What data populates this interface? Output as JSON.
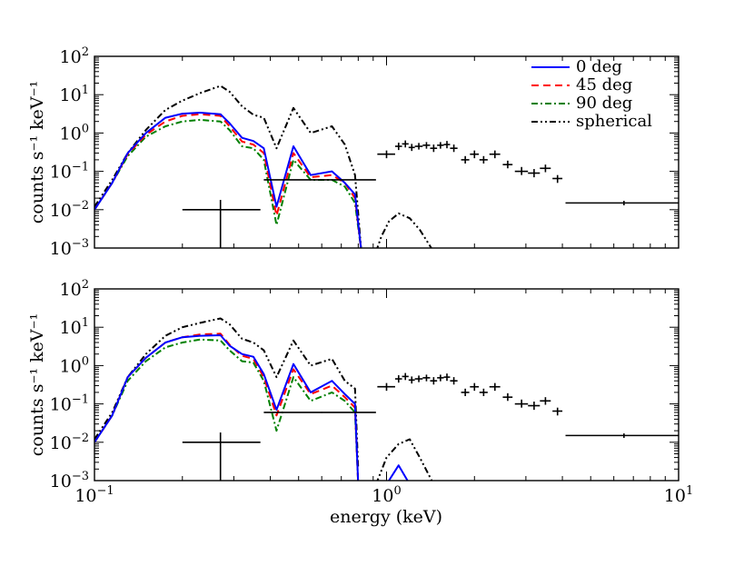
{
  "chart_data": [
    {
      "type": "line",
      "panel": "top",
      "title": "",
      "xlabel": "",
      "ylabel": "counts s⁻¹ keV⁻¹",
      "xscale": "log",
      "yscale": "log",
      "xlim": [
        0.1,
        10
      ],
      "ylim": [
        0.001,
        100
      ],
      "x_tick_labels": [],
      "y_tick_labels": [
        {
          "value": 100,
          "base": "10",
          "exp": "2"
        },
        {
          "value": 10,
          "base": "10",
          "exp": "1"
        },
        {
          "value": 1,
          "base": "10",
          "exp": "0"
        },
        {
          "value": 0.1,
          "base": "10",
          "exp": "−1"
        },
        {
          "value": 0.01,
          "base": "10",
          "exp": "−2"
        },
        {
          "value": 0.001,
          "base": "10",
          "exp": "−3"
        }
      ],
      "legend": {
        "position": "top-right",
        "entries": [
          {
            "label": "0 deg",
            "color": "#0000ff",
            "style": "solid"
          },
          {
            "label": "45 deg",
            "color": "#ff0000",
            "style": "dashed"
          },
          {
            "label": "90 deg",
            "color": "#008000",
            "style": "dashdot"
          },
          {
            "label": "spherical",
            "color": "#000000",
            "style": "dashdotdot"
          }
        ]
      },
      "series": [
        {
          "name": "spherical",
          "color": "#000000",
          "style": "dashdotdot",
          "x": [
            0.1,
            0.115,
            0.13,
            0.15,
            0.175,
            0.2,
            0.23,
            0.27,
            0.29,
            0.32,
            0.35,
            0.38,
            0.42,
            0.48,
            0.55,
            0.65,
            0.72,
            0.78,
            0.82
          ],
          "y": [
            0.012,
            0.06,
            0.3,
            1.2,
            4.0,
            7.0,
            11.0,
            17.0,
            12.0,
            5.0,
            3.0,
            2.5,
            0.4,
            4.5,
            1.0,
            1.5,
            0.5,
            0.08,
            0.0008
          ]
        },
        {
          "name": "spherical-tail",
          "color": "#000000",
          "style": "dashdotdot",
          "x": [
            0.92,
            0.96,
            1.02,
            1.1,
            1.2,
            1.3,
            1.45
          ],
          "y": [
            0.0008,
            0.002,
            0.005,
            0.008,
            0.006,
            0.003,
            0.0008
          ]
        },
        {
          "name": "90 deg",
          "color": "#008000",
          "style": "dashdot",
          "x": [
            0.1,
            0.115,
            0.13,
            0.15,
            0.175,
            0.2,
            0.23,
            0.27,
            0.29,
            0.32,
            0.35,
            0.38,
            0.42,
            0.48,
            0.55,
            0.65,
            0.72,
            0.78,
            0.82
          ],
          "y": [
            0.01,
            0.05,
            0.25,
            0.8,
            1.5,
            2.0,
            2.2,
            2.0,
            1.2,
            0.45,
            0.4,
            0.2,
            0.004,
            0.2,
            0.06,
            0.06,
            0.04,
            0.015,
            0.0008
          ]
        },
        {
          "name": "45 deg",
          "color": "#ff0000",
          "style": "dashed",
          "x": [
            0.1,
            0.115,
            0.13,
            0.15,
            0.175,
            0.2,
            0.23,
            0.27,
            0.29,
            0.32,
            0.35,
            0.38,
            0.42,
            0.48,
            0.55,
            0.65,
            0.72,
            0.78,
            0.82
          ],
          "y": [
            0.01,
            0.05,
            0.28,
            0.9,
            2.0,
            2.8,
            3.1,
            2.8,
            1.5,
            0.6,
            0.5,
            0.3,
            0.007,
            0.3,
            0.07,
            0.08,
            0.05,
            0.02,
            0.0008
          ]
        },
        {
          "name": "0 deg",
          "color": "#0000ff",
          "style": "solid",
          "x": [
            0.1,
            0.115,
            0.13,
            0.15,
            0.175,
            0.2,
            0.23,
            0.27,
            0.29,
            0.32,
            0.35,
            0.38,
            0.42,
            0.48,
            0.55,
            0.65,
            0.72,
            0.78,
            0.82
          ],
          "y": [
            0.01,
            0.05,
            0.3,
            1.0,
            2.5,
            3.2,
            3.4,
            3.1,
            1.8,
            0.75,
            0.62,
            0.4,
            0.012,
            0.45,
            0.08,
            0.1,
            0.05,
            0.025,
            0.0008
          ]
        }
      ],
      "data_points": {
        "name": "observed",
        "color": "#000000",
        "points": [
          {
            "x": 0.27,
            "y": 0.01,
            "xlo": 0.2,
            "xhi": 0.37,
            "ylo": 0.0008,
            "yhi": 0.018
          },
          {
            "x": 0.6,
            "y": 0.06,
            "xlo": 0.38,
            "xhi": 0.92,
            "ylo": 0.058,
            "yhi": 0.062
          },
          {
            "x": 1.0,
            "y": 0.28,
            "xlo": 0.93,
            "xhi": 1.07,
            "ylo": 0.22,
            "yhi": 0.35
          },
          {
            "x": 1.1,
            "y": 0.45,
            "xlo": 1.07,
            "xhi": 1.13,
            "ylo": 0.36,
            "yhi": 0.56
          },
          {
            "x": 1.16,
            "y": 0.52,
            "xlo": 1.13,
            "xhi": 1.19,
            "ylo": 0.42,
            "yhi": 0.64
          },
          {
            "x": 1.22,
            "y": 0.42,
            "xlo": 1.19,
            "xhi": 1.25,
            "ylo": 0.34,
            "yhi": 0.52
          },
          {
            "x": 1.29,
            "y": 0.45,
            "xlo": 1.25,
            "xhi": 1.33,
            "ylo": 0.37,
            "yhi": 0.55
          },
          {
            "x": 1.37,
            "y": 0.48,
            "xlo": 1.33,
            "xhi": 1.41,
            "ylo": 0.39,
            "yhi": 0.58
          },
          {
            "x": 1.45,
            "y": 0.4,
            "xlo": 1.41,
            "xhi": 1.49,
            "ylo": 0.32,
            "yhi": 0.5
          },
          {
            "x": 1.53,
            "y": 0.48,
            "xlo": 1.49,
            "xhi": 1.57,
            "ylo": 0.39,
            "yhi": 0.58
          },
          {
            "x": 1.61,
            "y": 0.5,
            "xlo": 1.57,
            "xhi": 1.65,
            "ylo": 0.4,
            "yhi": 0.62
          },
          {
            "x": 1.7,
            "y": 0.4,
            "xlo": 1.65,
            "xhi": 1.75,
            "ylo": 0.32,
            "yhi": 0.5
          },
          {
            "x": 1.86,
            "y": 0.2,
            "xlo": 1.8,
            "xhi": 1.92,
            "ylo": 0.16,
            "yhi": 0.25
          },
          {
            "x": 2.0,
            "y": 0.28,
            "xlo": 1.93,
            "xhi": 2.07,
            "ylo": 0.22,
            "yhi": 0.35
          },
          {
            "x": 2.15,
            "y": 0.2,
            "xlo": 2.08,
            "xhi": 2.22,
            "ylo": 0.16,
            "yhi": 0.25
          },
          {
            "x": 2.35,
            "y": 0.28,
            "xlo": 2.25,
            "xhi": 2.45,
            "ylo": 0.22,
            "yhi": 0.35
          },
          {
            "x": 2.6,
            "y": 0.15,
            "xlo": 2.5,
            "xhi": 2.7,
            "ylo": 0.12,
            "yhi": 0.19
          },
          {
            "x": 2.9,
            "y": 0.1,
            "xlo": 2.75,
            "xhi": 3.05,
            "ylo": 0.08,
            "yhi": 0.13
          },
          {
            "x": 3.2,
            "y": 0.09,
            "xlo": 3.05,
            "xhi": 3.35,
            "ylo": 0.07,
            "yhi": 0.115
          },
          {
            "x": 3.5,
            "y": 0.12,
            "xlo": 3.35,
            "xhi": 3.65,
            "ylo": 0.095,
            "yhi": 0.15
          },
          {
            "x": 3.85,
            "y": 0.065,
            "xlo": 3.7,
            "xhi": 4.0,
            "ylo": 0.05,
            "yhi": 0.08
          },
          {
            "x": 6.5,
            "y": 0.015,
            "xlo": 4.1,
            "xhi": 10.0,
            "ylo": 0.013,
            "yhi": 0.017
          }
        ]
      }
    },
    {
      "type": "line",
      "panel": "bottom",
      "title": "",
      "xlabel": "energy (keV)",
      "ylabel": "counts s⁻¹ keV⁻¹",
      "xscale": "log",
      "yscale": "log",
      "xlim": [
        0.1,
        10
      ],
      "ylim": [
        0.001,
        100
      ],
      "x_tick_labels": [
        {
          "value": 0.1,
          "base": "10",
          "exp": "−1"
        },
        {
          "value": 1,
          "base": "10",
          "exp": "0"
        },
        {
          "value": 10,
          "base": "10",
          "exp": "1"
        }
      ],
      "y_tick_labels": [
        {
          "value": 100,
          "base": "10",
          "exp": "2"
        },
        {
          "value": 10,
          "base": "10",
          "exp": "1"
        },
        {
          "value": 1,
          "base": "10",
          "exp": "0"
        },
        {
          "value": 0.1,
          "base": "10",
          "exp": "−1"
        },
        {
          "value": 0.01,
          "base": "10",
          "exp": "−2"
        },
        {
          "value": 0.001,
          "base": "10",
          "exp": "−3"
        }
      ],
      "series": [
        {
          "name": "spherical",
          "color": "#000000",
          "style": "dashdotdot",
          "x": [
            0.1,
            0.115,
            0.13,
            0.15,
            0.175,
            0.2,
            0.23,
            0.27,
            0.29,
            0.32,
            0.35,
            0.38,
            0.42,
            0.48,
            0.55,
            0.65,
            0.72,
            0.78,
            0.8
          ],
          "y": [
            0.012,
            0.06,
            0.5,
            2.0,
            6.0,
            10.0,
            13.0,
            17.0,
            12.0,
            5.0,
            4.0,
            2.5,
            0.5,
            4.5,
            1.0,
            1.5,
            0.4,
            0.25,
            0.002
          ]
        },
        {
          "name": "spherical-tail",
          "color": "#000000",
          "style": "dashdotdot",
          "x": [
            0.92,
            1.0,
            1.1,
            1.2,
            1.3,
            1.45
          ],
          "y": [
            0.0008,
            0.004,
            0.009,
            0.012,
            0.004,
            0.0008
          ]
        },
        {
          "name": "90 deg",
          "color": "#008000",
          "style": "dashdot",
          "x": [
            0.1,
            0.115,
            0.13,
            0.15,
            0.175,
            0.2,
            0.23,
            0.27,
            0.29,
            0.32,
            0.35,
            0.38,
            0.42,
            0.48,
            0.55,
            0.65,
            0.72,
            0.78,
            0.8
          ],
          "y": [
            0.01,
            0.05,
            0.4,
            1.3,
            3.0,
            4.0,
            4.8,
            4.5,
            2.5,
            1.3,
            1.2,
            0.4,
            0.02,
            0.5,
            0.12,
            0.2,
            0.12,
            0.06,
            0.0008
          ]
        },
        {
          "name": "45 deg",
          "color": "#ff0000",
          "style": "dashed",
          "x": [
            0.1,
            0.115,
            0.13,
            0.15,
            0.175,
            0.2,
            0.23,
            0.27,
            0.29,
            0.32,
            0.35,
            0.38,
            0.42,
            0.48,
            0.55,
            0.65,
            0.72,
            0.78,
            0.8
          ],
          "y": [
            0.01,
            0.05,
            0.5,
            1.6,
            4.0,
            5.5,
            6.5,
            6.8,
            3.5,
            1.8,
            1.5,
            0.5,
            0.05,
            0.8,
            0.18,
            0.3,
            0.15,
            0.08,
            0.0008
          ]
        },
        {
          "name": "0 deg",
          "color": "#0000ff",
          "style": "solid",
          "x": [
            0.1,
            0.115,
            0.13,
            0.15,
            0.175,
            0.2,
            0.23,
            0.27,
            0.29,
            0.32,
            0.35,
            0.38,
            0.42,
            0.48,
            0.55,
            0.65,
            0.72,
            0.78,
            0.8
          ],
          "y": [
            0.01,
            0.05,
            0.5,
            1.6,
            4.0,
            5.5,
            6.0,
            6.2,
            3.3,
            2.0,
            1.7,
            0.6,
            0.07,
            1.1,
            0.2,
            0.4,
            0.18,
            0.1,
            0.0008
          ]
        },
        {
          "name": "0 deg-tail",
          "color": "#0000ff",
          "style": "solid",
          "x": [
            1.0,
            1.1,
            1.2
          ],
          "y": [
            0.0008,
            0.0025,
            0.0008
          ]
        }
      ],
      "data_points": {
        "name": "observed",
        "color": "#000000",
        "points": [
          {
            "x": 0.27,
            "y": 0.01,
            "xlo": 0.2,
            "xhi": 0.37,
            "ylo": 0.0008,
            "yhi": 0.018
          },
          {
            "x": 0.6,
            "y": 0.06,
            "xlo": 0.38,
            "xhi": 0.92,
            "ylo": 0.058,
            "yhi": 0.062
          },
          {
            "x": 1.0,
            "y": 0.28,
            "xlo": 0.93,
            "xhi": 1.07,
            "ylo": 0.22,
            "yhi": 0.35
          },
          {
            "x": 1.1,
            "y": 0.45,
            "xlo": 1.07,
            "xhi": 1.13,
            "ylo": 0.36,
            "yhi": 0.56
          },
          {
            "x": 1.16,
            "y": 0.52,
            "xlo": 1.13,
            "xhi": 1.19,
            "ylo": 0.42,
            "yhi": 0.64
          },
          {
            "x": 1.22,
            "y": 0.42,
            "xlo": 1.19,
            "xhi": 1.25,
            "ylo": 0.34,
            "yhi": 0.52
          },
          {
            "x": 1.29,
            "y": 0.45,
            "xlo": 1.25,
            "xhi": 1.33,
            "ylo": 0.37,
            "yhi": 0.55
          },
          {
            "x": 1.37,
            "y": 0.48,
            "xlo": 1.33,
            "xhi": 1.41,
            "ylo": 0.39,
            "yhi": 0.58
          },
          {
            "x": 1.45,
            "y": 0.4,
            "xlo": 1.41,
            "xhi": 1.49,
            "ylo": 0.32,
            "yhi": 0.5
          },
          {
            "x": 1.53,
            "y": 0.48,
            "xlo": 1.49,
            "xhi": 1.57,
            "ylo": 0.39,
            "yhi": 0.58
          },
          {
            "x": 1.61,
            "y": 0.5,
            "xlo": 1.57,
            "xhi": 1.65,
            "ylo": 0.4,
            "yhi": 0.62
          },
          {
            "x": 1.7,
            "y": 0.4,
            "xlo": 1.65,
            "xhi": 1.75,
            "ylo": 0.32,
            "yhi": 0.5
          },
          {
            "x": 1.86,
            "y": 0.2,
            "xlo": 1.8,
            "xhi": 1.92,
            "ylo": 0.16,
            "yhi": 0.25
          },
          {
            "x": 2.0,
            "y": 0.28,
            "xlo": 1.93,
            "xhi": 2.07,
            "ylo": 0.22,
            "yhi": 0.35
          },
          {
            "x": 2.15,
            "y": 0.2,
            "xlo": 2.08,
            "xhi": 2.22,
            "ylo": 0.16,
            "yhi": 0.25
          },
          {
            "x": 2.35,
            "y": 0.28,
            "xlo": 2.25,
            "xhi": 2.45,
            "ylo": 0.22,
            "yhi": 0.35
          },
          {
            "x": 2.6,
            "y": 0.15,
            "xlo": 2.5,
            "xhi": 2.7,
            "ylo": 0.12,
            "yhi": 0.19
          },
          {
            "x": 2.9,
            "y": 0.1,
            "xlo": 2.75,
            "xhi": 3.05,
            "ylo": 0.08,
            "yhi": 0.13
          },
          {
            "x": 3.2,
            "y": 0.09,
            "xlo": 3.05,
            "xhi": 3.35,
            "ylo": 0.07,
            "yhi": 0.115
          },
          {
            "x": 3.5,
            "y": 0.12,
            "xlo": 3.35,
            "xhi": 3.65,
            "ylo": 0.095,
            "yhi": 0.15
          },
          {
            "x": 3.85,
            "y": 0.065,
            "xlo": 3.7,
            "xhi": 4.0,
            "ylo": 0.05,
            "yhi": 0.08
          },
          {
            "x": 6.5,
            "y": 0.015,
            "xlo": 4.1,
            "xhi": 10.0,
            "ylo": 0.013,
            "yhi": 0.017
          }
        ]
      }
    }
  ]
}
